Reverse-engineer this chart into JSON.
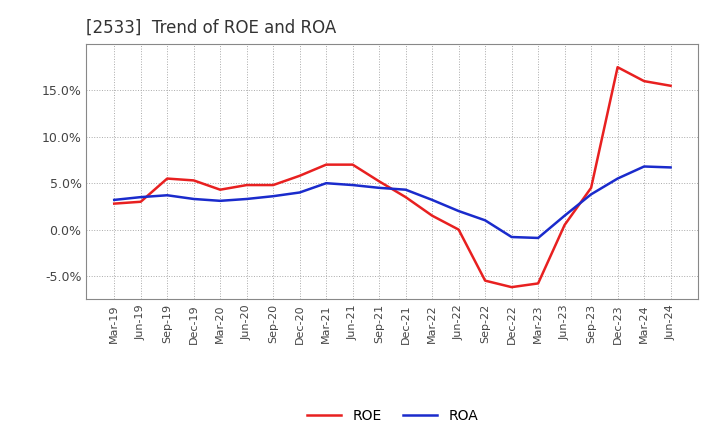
{
  "title": "[2533]  Trend of ROE and ROA",
  "x_labels": [
    "Mar-19",
    "Jun-19",
    "Sep-19",
    "Dec-19",
    "Mar-20",
    "Jun-20",
    "Sep-20",
    "Dec-20",
    "Mar-21",
    "Jun-21",
    "Sep-21",
    "Dec-21",
    "Mar-22",
    "Jun-22",
    "Sep-22",
    "Dec-22",
    "Mar-23",
    "Jun-23",
    "Sep-23",
    "Dec-23",
    "Mar-24",
    "Jun-24"
  ],
  "roe": [
    2.8,
    3.0,
    5.5,
    5.3,
    4.3,
    4.8,
    4.8,
    5.8,
    7.0,
    7.0,
    5.2,
    3.5,
    1.5,
    0.0,
    -5.5,
    -6.2,
    -5.8,
    0.5,
    4.5,
    17.5,
    16.0,
    15.5
  ],
  "roa": [
    3.2,
    3.5,
    3.7,
    3.3,
    3.1,
    3.3,
    3.6,
    4.0,
    5.0,
    4.8,
    4.5,
    4.3,
    3.2,
    2.0,
    1.0,
    -0.8,
    -0.9,
    1.5,
    3.8,
    5.5,
    6.8,
    6.7
  ],
  "roe_color": "#e82020",
  "roa_color": "#1a2bcc",
  "ylim": [
    -7.5,
    20.0
  ],
  "yticks": [
    -5.0,
    0.0,
    5.0,
    10.0,
    15.0
  ],
  "background_color": "#ffffff",
  "plot_bg_color": "#ffffff",
  "grid_color": "#aaaaaa",
  "title_fontsize": 12,
  "title_color": "#333333"
}
